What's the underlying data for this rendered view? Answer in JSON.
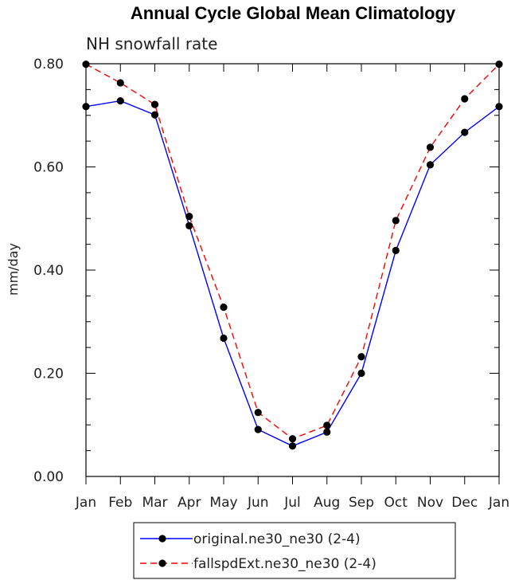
{
  "chart_data": {
    "type": "line",
    "title": "Annual Cycle Global Mean Climatology",
    "subtitle": "NH snowfall rate",
    "xlabel": "",
    "ylabel": "mm/day",
    "categories": [
      "Jan",
      "Feb",
      "Mar",
      "Apr",
      "May",
      "Jun",
      "Jul",
      "Aug",
      "Sep",
      "Oct",
      "Nov",
      "Dec",
      "Jan"
    ],
    "ylim": [
      0,
      0.8
    ],
    "yticks": [
      "0.00",
      "0.20",
      "0.40",
      "0.60",
      "0.80"
    ],
    "ytick_values": [
      0,
      0.2,
      0.4,
      0.6,
      0.8
    ],
    "series": [
      {
        "name": "original.ne30_ne30 (2-4)",
        "color": "#0000ff",
        "dash": "solid",
        "values": [
          0.717,
          0.728,
          0.701,
          0.486,
          0.268,
          0.091,
          0.059,
          0.086,
          0.2,
          0.438,
          0.604,
          0.667,
          0.717
        ]
      },
      {
        "name": "fallspdExt.ne30_ne30 (2-4)",
        "color": "#ff0000",
        "dash": "dashed",
        "values": [
          0.799,
          0.763,
          0.721,
          0.504,
          0.328,
          0.124,
          0.073,
          0.099,
          0.232,
          0.496,
          0.638,
          0.732,
          0.799
        ]
      }
    ],
    "legend_position": "bottom-center"
  }
}
